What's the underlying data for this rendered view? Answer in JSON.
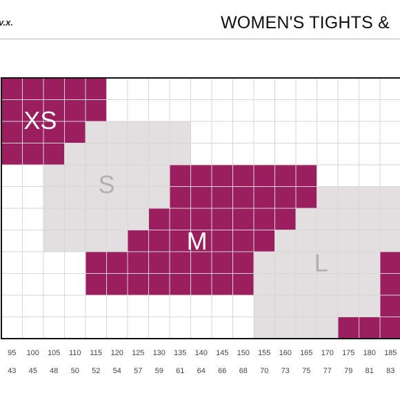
{
  "header": {
    "brand": "v.x.",
    "title": "WOMEN'S TIGHTS &"
  },
  "chart_data": {
    "type": "heatmap",
    "title": "WOMEN'S TIGHTS &",
    "x_tick_labels_row1": [
      "95",
      "100",
      "105",
      "110",
      "115",
      "120",
      "125",
      "130",
      "135",
      "140",
      "145",
      "150",
      "155",
      "160",
      "165",
      "170",
      "175",
      "180",
      "185"
    ],
    "x_tick_labels_row2": [
      "43",
      "45",
      "48",
      "50",
      "52",
      "54",
      "57",
      "59",
      "61",
      "64",
      "66",
      "68",
      "70",
      "73",
      "75",
      "77",
      "79",
      "81",
      "83"
    ],
    "grid": true,
    "colors": {
      "magenta": "#9b1f5e",
      "light": "#e3dfe1",
      "grid_line": "#d6d6d6",
      "border": "#111111"
    },
    "sizes": [
      {
        "name": "XS",
        "color": "magenta",
        "rows": [
          [
            0,
            0,
            4
          ],
          [
            1,
            0,
            4
          ],
          [
            2,
            0,
            3
          ],
          [
            3,
            0,
            3
          ]
        ]
      },
      {
        "name": "S",
        "color": "light",
        "rows": [
          [
            2,
            4,
            8
          ],
          [
            3,
            3,
            8
          ],
          [
            4,
            2,
            8
          ],
          [
            5,
            2,
            8
          ],
          [
            6,
            2,
            7
          ],
          [
            7,
            2,
            6
          ]
        ]
      },
      {
        "name": "M",
        "color": "magenta",
        "rows": [
          [
            4,
            8,
            14
          ],
          [
            5,
            8,
            15
          ],
          [
            6,
            7,
            14
          ],
          [
            7,
            6,
            13
          ],
          [
            8,
            4,
            12
          ],
          [
            9,
            4,
            12
          ]
        ]
      },
      {
        "name": "L",
        "color": "light",
        "rows": [
          [
            5,
            15,
            19
          ],
          [
            6,
            14,
            19
          ],
          [
            7,
            13,
            19
          ],
          [
            8,
            12,
            19
          ],
          [
            9,
            12,
            18
          ],
          [
            10,
            12,
            18
          ],
          [
            11,
            12,
            16
          ]
        ]
      },
      {
        "name": "",
        "color": "magenta",
        "rows": [
          [
            7,
            19,
            19
          ],
          [
            8,
            18,
            19
          ],
          [
            9,
            18,
            19
          ],
          [
            10,
            18,
            19
          ],
          [
            11,
            16,
            19
          ]
        ]
      }
    ],
    "labels": [
      {
        "text": "XS",
        "row": 2.05,
        "col": 1.85,
        "tone": "white"
      },
      {
        "text": "S",
        "row": 5.0,
        "col": 5.0,
        "tone": "grey"
      },
      {
        "text": "M",
        "row": 7.6,
        "col": 9.3,
        "tone": "white"
      },
      {
        "text": "L",
        "row": 8.6,
        "col": 15.2,
        "tone": "grey"
      }
    ]
  }
}
